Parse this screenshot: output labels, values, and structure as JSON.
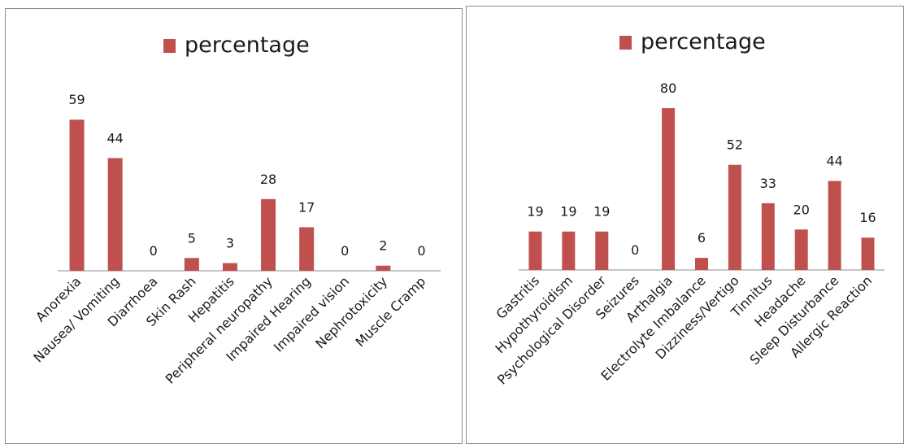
{
  "colors": {
    "bar": "#c0504d",
    "axis": "#8c8c8c",
    "text": "#1a1a1a"
  },
  "chart_data": [
    {
      "type": "bar",
      "legend": [
        "percentage"
      ],
      "legend_position": "top",
      "grid": false,
      "categories": [
        "Anorexia",
        "Nausea/ Vomiting",
        "Diarrhoea",
        "Skin Rash",
        "Hepatitis",
        "Peripheral neuropathy",
        "Impaired Hearing",
        "Impaired vision",
        "Nephrotoxicity",
        "Muscle Cramp"
      ],
      "series": [
        {
          "name": "percentage",
          "values": [
            59,
            44,
            0,
            5,
            3,
            28,
            17,
            0,
            2,
            0
          ]
        }
      ],
      "data_labels": [
        "59",
        "44",
        "0",
        "5",
        "3",
        "28",
        "17",
        "0",
        "2",
        "0"
      ],
      "ylim": [
        0,
        80
      ]
    },
    {
      "type": "bar",
      "legend": [
        "percentage"
      ],
      "legend_position": "top",
      "grid": false,
      "categories": [
        "Gastritis",
        "Hypothyroidism",
        "Psychological Disorder",
        "Seizures",
        "Arthalgia",
        "Electrolyte Imbalance",
        "Dizziness/Vertigo",
        "Tinnitus",
        "Headache",
        "Sleep Disturbance",
        "Allergic Reaction"
      ],
      "series": [
        {
          "name": "percentage",
          "values": [
            19,
            19,
            19,
            0,
            80,
            6,
            52,
            33,
            20,
            44,
            16
          ]
        }
      ],
      "data_labels": [
        "19",
        "19",
        "19",
        "0",
        "80",
        "6",
        "52",
        "33",
        "20",
        "44",
        "16"
      ],
      "ylim": [
        0,
        80
      ]
    }
  ]
}
